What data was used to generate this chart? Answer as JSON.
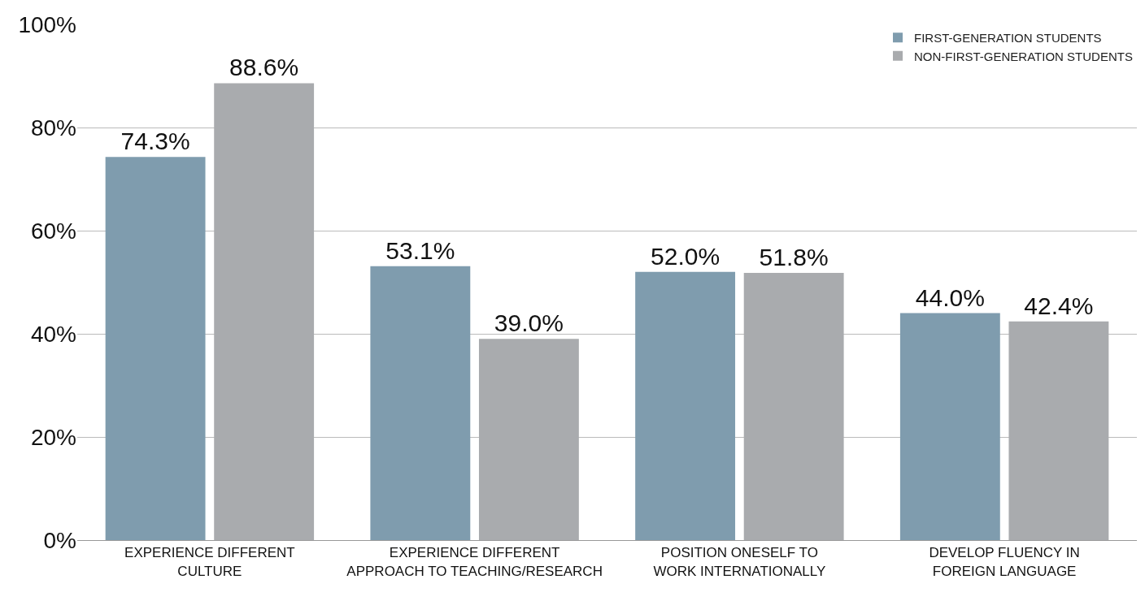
{
  "chart_data": {
    "type": "bar",
    "categories": [
      "EXPERIENCE DIFFERENT\nCULTURE",
      "EXPERIENCE DIFFERENT\nAPPROACH TO TEACHING/RESEARCH",
      "POSITION ONESELF TO\nWORK INTERNATIONALLY",
      "DEVELOP FLUENCY IN\nFOREIGN LANGUAGE"
    ],
    "series": [
      {
        "name": "FIRST-GENERATION STUDENTS",
        "color": "#7f9cae",
        "values": [
          74.3,
          53.1,
          52.0,
          44.0
        ],
        "value_labels": [
          "74.3%",
          "53.1%",
          "52.0%",
          "44.0%"
        ]
      },
      {
        "name": "NON-FIRST-GENERATION STUDENTS",
        "color": "#a9abae",
        "values": [
          88.6,
          39.0,
          51.8,
          42.4
        ],
        "value_labels": [
          "88.6%",
          "39.0%",
          "51.8%",
          "42.4%"
        ]
      }
    ],
    "ylim": [
      0,
      100
    ],
    "yticks": [
      {
        "value": 0,
        "label": "0%"
      },
      {
        "value": 20,
        "label": "20%"
      },
      {
        "value": 40,
        "label": "40%"
      },
      {
        "value": 60,
        "label": "60%"
      },
      {
        "value": 80,
        "label": "80%"
      },
      {
        "value": 100,
        "label": "100%"
      }
    ],
    "grid": "y",
    "legend": "top right"
  }
}
